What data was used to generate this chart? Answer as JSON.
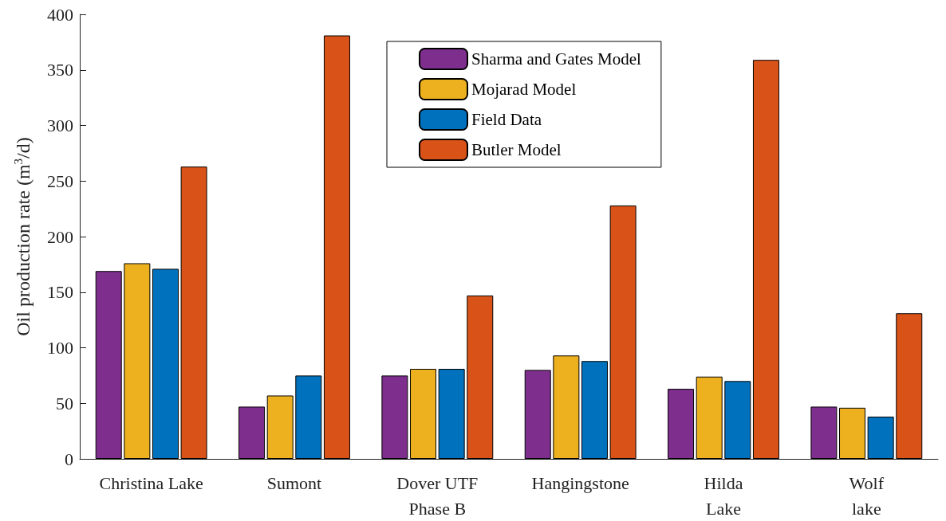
{
  "chart_data": {
    "type": "bar",
    "ylabel": "Oil production rate (m$^{3}$/d)",
    "categories": [
      "Christina Lake",
      "Sumont",
      "Dover UTF\nPhase B",
      "Hangingstone",
      "Hilda\nLake",
      "Wolf\nlake"
    ],
    "series": [
      {
        "name": "Sharma and Gates Model",
        "color": "#7e2f8e",
        "values": [
          169,
          47,
          75,
          80,
          63,
          47
        ]
      },
      {
        "name": "Mojarad Model",
        "color": "#edb120",
        "values": [
          176,
          57,
          81,
          93,
          74,
          46
        ]
      },
      {
        "name": "Field Data",
        "color": "#0072bd",
        "values": [
          171,
          75,
          81,
          88,
          70,
          38
        ]
      },
      {
        "name": "Butler Model",
        "color": "#d95319",
        "values": [
          263,
          381,
          147,
          228,
          359,
          131
        ]
      }
    ],
    "ylim": [
      0,
      400
    ],
    "yticks": [
      0,
      50,
      100,
      150,
      200,
      250,
      300,
      350,
      400
    ],
    "grid": false,
    "legend": "top"
  }
}
